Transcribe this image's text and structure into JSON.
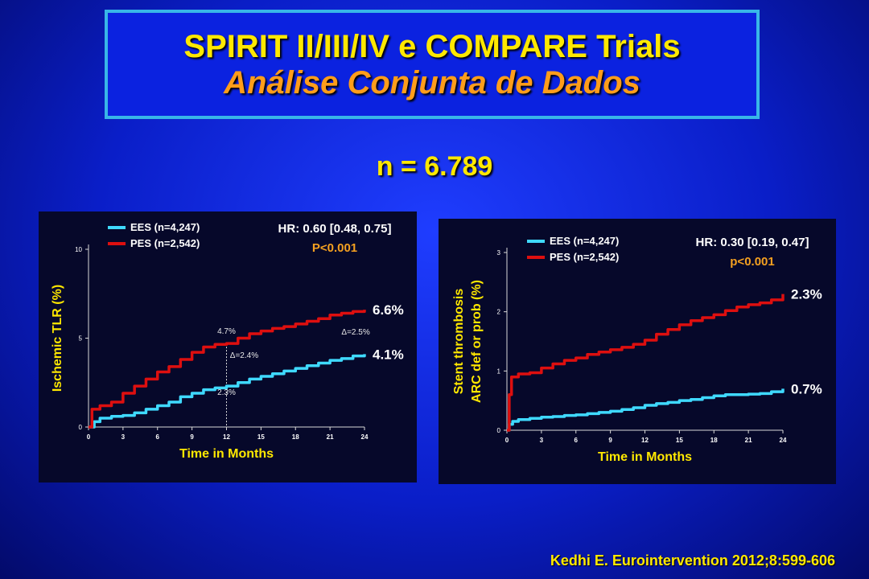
{
  "title": {
    "line1": "SPIRIT II/III/IV e COMPARE Trials",
    "line2": "Análise Conjunta de Dados"
  },
  "n_label": "n = 6.789",
  "citation": "Kedhi E. Eurointervention 2012;8:599-606",
  "colors": {
    "ees": "#3fd9ff",
    "pes": "#dd0f0f",
    "accent_yellow": "#ffe800",
    "accent_orange": "#f4a020"
  },
  "chart_data": [
    {
      "type": "line",
      "xlabel": "Time in Months",
      "ylabel": "Ischemic TLR (%)",
      "xlim": [
        0,
        24
      ],
      "ylim": [
        0,
        10
      ],
      "xticks": [
        0,
        3,
        6,
        9,
        12,
        15,
        18,
        21,
        24
      ],
      "yticks": [
        0,
        5,
        10
      ],
      "hr_text": "HR: 0.60 [0.48, 0.75]",
      "p_text": "P<0.001",
      "legend": [
        "EES (n=4,247)",
        "PES (n=2,542)"
      ],
      "series": [
        {
          "name": "EES (n=4,247)",
          "end_label": "4.1%",
          "x": [
            0,
            0.5,
            1,
            2,
            3,
            4,
            5,
            6,
            7,
            8,
            9,
            10,
            11,
            12,
            13,
            14,
            15,
            16,
            17,
            18,
            19,
            20,
            21,
            22,
            23,
            24
          ],
          "y": [
            0,
            0.3,
            0.5,
            0.6,
            0.65,
            0.8,
            1.0,
            1.2,
            1.4,
            1.7,
            1.9,
            2.1,
            2.2,
            2.3,
            2.5,
            2.7,
            2.85,
            3.0,
            3.15,
            3.3,
            3.45,
            3.6,
            3.75,
            3.85,
            4.0,
            4.1
          ]
        },
        {
          "name": "PES (n=2,542)",
          "end_label": "6.6%",
          "x": [
            0,
            0.3,
            1,
            2,
            3,
            4,
            5,
            6,
            7,
            8,
            9,
            10,
            11,
            12,
            13,
            14,
            15,
            16,
            17,
            18,
            19,
            20,
            21,
            22,
            23,
            24
          ],
          "y": [
            0,
            1.0,
            1.2,
            1.4,
            1.9,
            2.3,
            2.7,
            3.1,
            3.4,
            3.8,
            4.2,
            4.5,
            4.65,
            4.7,
            5.0,
            5.25,
            5.4,
            5.55,
            5.65,
            5.8,
            5.95,
            6.1,
            6.3,
            6.4,
            6.5,
            6.6
          ]
        }
      ],
      "annotations": [
        {
          "text": "4.7%",
          "x": 12,
          "y": 5.25
        },
        {
          "text": "Δ=2.4%",
          "x": 12.3,
          "y": 3.9
        },
        {
          "text": "2.3%",
          "x": 12,
          "y": 1.8
        },
        {
          "text": "Δ=2.5%",
          "x": 22,
          "y": 5.2
        }
      ],
      "marker_x": 12
    },
    {
      "type": "line",
      "xlabel": "Time in Months",
      "ylabel": "Stent thrombosis",
      "ylabel2": "ARC def or prob (%)",
      "xlim": [
        0,
        24
      ],
      "ylim": [
        0,
        3
      ],
      "xticks": [
        0,
        3,
        6,
        9,
        12,
        15,
        18,
        21,
        24
      ],
      "yticks": [
        0,
        1,
        2,
        3
      ],
      "hr_text": "HR: 0.30 [0.19, 0.47]",
      "p_text": "p<0.001",
      "legend": [
        "EES (n=4,247)",
        "PES (n=2,542)"
      ],
      "series": [
        {
          "name": "EES (n=4,247)",
          "end_label": "0.7%",
          "x": [
            0,
            0.2,
            0.5,
            1,
            2,
            3,
            4,
            5,
            6,
            7,
            8,
            9,
            10,
            11,
            12,
            13,
            14,
            15,
            16,
            17,
            18,
            19,
            20,
            21,
            22,
            23,
            24
          ],
          "y": [
            0,
            0.1,
            0.15,
            0.18,
            0.2,
            0.22,
            0.23,
            0.25,
            0.26,
            0.28,
            0.3,
            0.32,
            0.35,
            0.38,
            0.42,
            0.45,
            0.47,
            0.5,
            0.52,
            0.55,
            0.58,
            0.6,
            0.6,
            0.61,
            0.62,
            0.65,
            0.7
          ]
        },
        {
          "name": "PES (n=2,542)",
          "end_label": "2.3%",
          "x": [
            0,
            0.2,
            0.4,
            1,
            2,
            3,
            4,
            5,
            6,
            7,
            8,
            9,
            10,
            11,
            12,
            13,
            14,
            15,
            16,
            17,
            18,
            19,
            20,
            21,
            22,
            23,
            24
          ],
          "y": [
            0,
            0.6,
            0.9,
            0.95,
            0.97,
            1.05,
            1.12,
            1.18,
            1.22,
            1.28,
            1.32,
            1.36,
            1.4,
            1.45,
            1.52,
            1.62,
            1.7,
            1.78,
            1.85,
            1.9,
            1.95,
            2.02,
            2.08,
            2.12,
            2.15,
            2.2,
            2.3
          ]
        }
      ]
    }
  ]
}
